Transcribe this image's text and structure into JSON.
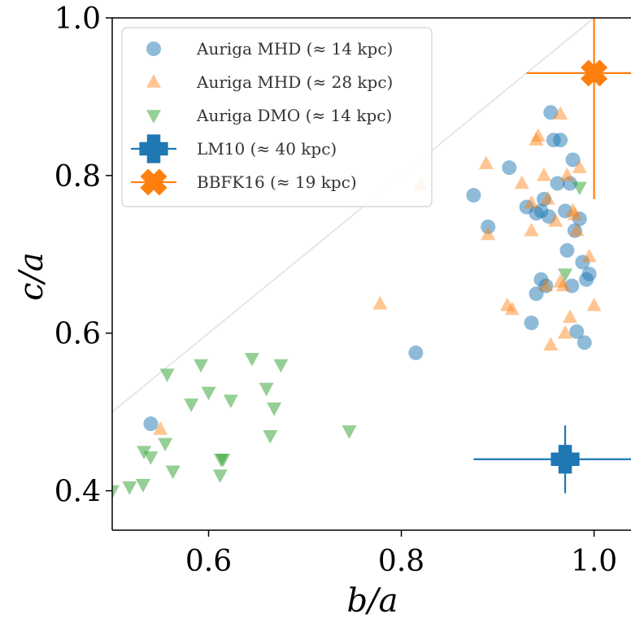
{
  "chart_data": {
    "type": "scatter",
    "title": "",
    "xlabel": "b/a",
    "ylabel": "c/a",
    "xlim": [
      0.5,
      1.04
    ],
    "ylim": [
      0.35,
      1.0
    ],
    "x_ticks": [
      0.6,
      0.8,
      1.0
    ],
    "x_tick_labels": [
      "0.6",
      "0.8",
      "1.0"
    ],
    "y_ticks": [
      0.4,
      0.6,
      0.8,
      1.0
    ],
    "y_tick_labels": [
      "0.4",
      "0.6",
      "0.8",
      "1.0"
    ],
    "grid": false,
    "legend_position": "top-left",
    "reference_line": {
      "from": [
        0.5,
        0.5
      ],
      "to": [
        1.0,
        1.0
      ],
      "color": "#e0e0e0"
    },
    "series": [
      {
        "name": "Auriga MHD (≈ 14 kpc)",
        "marker": "circle",
        "color": "#1f77b4",
        "points": [
          [
            0.54,
            0.485
          ],
          [
            0.815,
            0.575
          ],
          [
            0.875,
            0.775
          ],
          [
            0.89,
            0.735
          ],
          [
            0.912,
            0.81
          ],
          [
            0.93,
            0.76
          ],
          [
            0.935,
            0.613
          ],
          [
            0.94,
            0.65
          ],
          [
            0.94,
            0.752
          ],
          [
            0.945,
            0.755
          ],
          [
            0.945,
            0.668
          ],
          [
            0.948,
            0.77
          ],
          [
            0.95,
            0.66
          ],
          [
            0.953,
            0.748
          ],
          [
            0.955,
            0.88
          ],
          [
            0.958,
            0.845
          ],
          [
            0.962,
            0.79
          ],
          [
            0.965,
            0.845
          ],
          [
            0.97,
            0.755
          ],
          [
            0.972,
            0.705
          ],
          [
            0.975,
            0.79
          ],
          [
            0.977,
            0.66
          ],
          [
            0.978,
            0.82
          ],
          [
            0.98,
            0.73
          ],
          [
            0.982,
            0.602
          ],
          [
            0.985,
            0.745
          ],
          [
            0.988,
            0.69
          ],
          [
            0.99,
            0.588
          ],
          [
            0.992,
            0.668
          ],
          [
            0.995,
            0.675
          ]
        ]
      },
      {
        "name": "Auriga MHD (≈ 28 kpc)",
        "marker": "triangle-up",
        "color": "#ff7f0e",
        "points": [
          [
            0.55,
            0.478
          ],
          [
            0.778,
            0.637
          ],
          [
            0.82,
            0.788
          ],
          [
            0.888,
            0.815
          ],
          [
            0.89,
            0.725
          ],
          [
            0.91,
            0.635
          ],
          [
            0.915,
            0.63
          ],
          [
            0.925,
            0.79
          ],
          [
            0.935,
            0.765
          ],
          [
            0.935,
            0.73
          ],
          [
            0.94,
            0.845
          ],
          [
            0.942,
            0.85
          ],
          [
            0.948,
            0.8
          ],
          [
            0.95,
            0.66
          ],
          [
            0.952,
            0.77
          ],
          [
            0.955,
            0.585
          ],
          [
            0.96,
            0.742
          ],
          [
            0.965,
            0.665
          ],
          [
            0.965,
            0.878
          ],
          [
            0.968,
            0.66
          ],
          [
            0.97,
            0.6
          ],
          [
            0.972,
            0.8
          ],
          [
            0.975,
            0.62
          ],
          [
            0.978,
            0.755
          ],
          [
            0.98,
            0.75
          ],
          [
            0.982,
            0.73
          ],
          [
            0.985,
            0.81
          ],
          [
            0.995,
            0.697
          ],
          [
            1.0,
            0.635
          ]
        ]
      },
      {
        "name": "Auriga DMO (≈ 14 kpc)",
        "marker": "triangle-down",
        "color": "#2ca02c",
        "points": [
          [
            0.5,
            0.4
          ],
          [
            0.518,
            0.405
          ],
          [
            0.532,
            0.408
          ],
          [
            0.533,
            0.45
          ],
          [
            0.54,
            0.443
          ],
          [
            0.555,
            0.46
          ],
          [
            0.557,
            0.548
          ],
          [
            0.563,
            0.425
          ],
          [
            0.582,
            0.51
          ],
          [
            0.592,
            0.56
          ],
          [
            0.6,
            0.525
          ],
          [
            0.612,
            0.42
          ],
          [
            0.613,
            0.44
          ],
          [
            0.615,
            0.44
          ],
          [
            0.623,
            0.515
          ],
          [
            0.645,
            0.568
          ],
          [
            0.66,
            0.53
          ],
          [
            0.664,
            0.47
          ],
          [
            0.668,
            0.505
          ],
          [
            0.675,
            0.56
          ],
          [
            0.746,
            0.476
          ],
          [
            0.97,
            0.675
          ],
          [
            0.985,
            0.785
          ]
        ]
      },
      {
        "name": "LM10 (≈ 40 kpc)",
        "marker": "plus-errorbar",
        "color": "#1f77b4",
        "points": [
          [
            0.97,
            0.44
          ]
        ],
        "xerr": [
          0.095,
          0.07
        ],
        "yerr": [
          0.043,
          0.043
        ]
      },
      {
        "name": "BBFK16 (≈ 19 kpc)",
        "marker": "x-errorbar",
        "color": "#ff7f0e",
        "points": [
          [
            1.0,
            0.93
          ]
        ],
        "xerr": [
          0.07,
          0.05
        ],
        "yerr": [
          0.16,
          0.07
        ]
      }
    ]
  }
}
